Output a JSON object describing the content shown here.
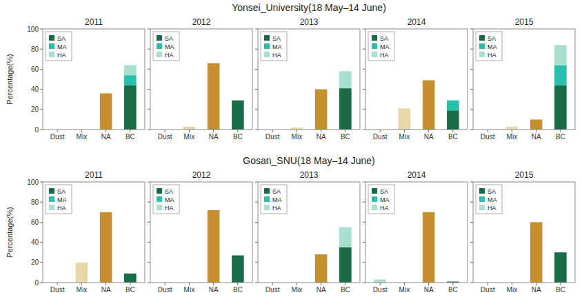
{
  "chart_data": [
    {
      "type": "bar",
      "stacked": true,
      "title": "2011",
      "subtitle": "Yonsei_University(18 May–14 June)",
      "y_label": "Percentage(%)",
      "categories": [
        "Dust",
        "Mix",
        "NA",
        "BC"
      ],
      "series": [
        {
          "name": "SA",
          "color": "#1b6b47",
          "colors": [
            "#c49030",
            "#1b6b47",
            "#c49030",
            "#1b6b47"
          ],
          "values": [
            0,
            0,
            36,
            44
          ]
        },
        {
          "name": "MA",
          "color": "#2abfaa",
          "colors": [
            "#2abfaa",
            "#2abfaa",
            "#2abfaa",
            "#2abfaa"
          ],
          "values": [
            0,
            0,
            0,
            10
          ]
        },
        {
          "name": "HA",
          "color": "#a8dfd0",
          "colors": [
            "#a8dfd0",
            "#e8d8a8",
            "#a8dfd0",
            "#a8dfd0"
          ],
          "values": [
            0,
            0,
            0,
            10
          ]
        }
      ],
      "ylim": [
        0,
        100
      ],
      "yticks": [
        0,
        20,
        40,
        60,
        80,
        100
      ],
      "legend": "upper left",
      "grid": false
    },
    {
      "type": "bar",
      "stacked": true,
      "title": "2012",
      "categories": [
        "Dust",
        "Mix",
        "NA",
        "BC"
      ],
      "series": [
        {
          "name": "SA",
          "color": "#1b6b47",
          "colors": [
            "#c49030",
            "#1b6b47",
            "#c49030",
            "#1b6b47"
          ],
          "values": [
            0,
            0,
            66,
            29
          ]
        },
        {
          "name": "MA",
          "color": "#2abfaa",
          "colors": [
            "#2abfaa",
            "#2abfaa",
            "#2abfaa",
            "#2abfaa"
          ],
          "values": [
            0,
            0,
            0,
            0
          ]
        },
        {
          "name": "HA",
          "color": "#a8dfd0",
          "colors": [
            "#a8dfd0",
            "#e8d8a8",
            "#a8dfd0",
            "#a8dfd0"
          ],
          "values": [
            0,
            3,
            0,
            0
          ]
        }
      ],
      "ylim": [
        0,
        100
      ],
      "yticks": [
        0,
        20,
        40,
        60,
        80,
        100
      ],
      "tick_labels": "x",
      "legend": "upper left",
      "grid": false
    },
    {
      "type": "bar",
      "stacked": true,
      "title": "2013",
      "categories": [
        "Dust",
        "Mix",
        "NA",
        "BC"
      ],
      "series": [
        {
          "name": "SA",
          "color": "#1b6b47",
          "colors": [
            "#c49030",
            "#1b6b47",
            "#c49030",
            "#1b6b47"
          ],
          "values": [
            0,
            0,
            40,
            41
          ]
        },
        {
          "name": "MA",
          "color": "#2abfaa",
          "colors": [
            "#2abfaa",
            "#2abfaa",
            "#2abfaa",
            "#2abfaa"
          ],
          "values": [
            0,
            0,
            0,
            0
          ]
        },
        {
          "name": "HA",
          "color": "#a8dfd0",
          "colors": [
            "#a8dfd0",
            "#e8d8a8",
            "#a8dfd0",
            "#a8dfd0"
          ],
          "values": [
            0,
            2,
            0,
            17
          ]
        }
      ],
      "ylim": [
        0,
        100
      ],
      "yticks": [
        0,
        20,
        40,
        60,
        80,
        100
      ],
      "tick_labels": "x",
      "legend": "upper left",
      "grid": false
    },
    {
      "type": "bar",
      "stacked": true,
      "title": "2014",
      "categories": [
        "Dust",
        "Mix",
        "NA",
        "BC"
      ],
      "series": [
        {
          "name": "SA",
          "color": "#1b6b47",
          "colors": [
            "#c49030",
            "#1b6b47",
            "#c49030",
            "#1b6b47"
          ],
          "values": [
            0,
            0,
            49,
            19
          ]
        },
        {
          "name": "MA",
          "color": "#2abfaa",
          "colors": [
            "#2abfaa",
            "#2abfaa",
            "#2abfaa",
            "#2abfaa"
          ],
          "values": [
            0,
            0,
            0,
            10
          ]
        },
        {
          "name": "HA",
          "color": "#a8dfd0",
          "colors": [
            "#a8dfd0",
            "#e8d8a8",
            "#a8dfd0",
            "#a8dfd0"
          ],
          "values": [
            0,
            21,
            0,
            0
          ]
        }
      ],
      "ylim": [
        0,
        100
      ],
      "yticks": [
        0,
        20,
        40,
        60,
        80,
        100
      ],
      "tick_labels": "x",
      "legend": "upper left",
      "grid": false
    },
    {
      "type": "bar",
      "stacked": true,
      "title": "2015",
      "categories": [
        "Dust",
        "Mix",
        "NA",
        "BC"
      ],
      "series": [
        {
          "name": "SA",
          "color": "#1b6b47",
          "colors": [
            "#c49030",
            "#1b6b47",
            "#c49030",
            "#1b6b47"
          ],
          "values": [
            0,
            0,
            10,
            44
          ]
        },
        {
          "name": "MA",
          "color": "#2abfaa",
          "colors": [
            "#2abfaa",
            "#2abfaa",
            "#2abfaa",
            "#2abfaa"
          ],
          "values": [
            0,
            0,
            0,
            20
          ]
        },
        {
          "name": "HA",
          "color": "#a8dfd0",
          "colors": [
            "#a8dfd0",
            "#e8d8a8",
            "#a8dfd0",
            "#a8dfd0"
          ],
          "values": [
            0,
            3,
            0,
            20
          ]
        }
      ],
      "ylim": [
        0,
        100
      ],
      "yticks": [
        0,
        20,
        40,
        60,
        80,
        100
      ],
      "tick_labels": "x",
      "legend": "upper left",
      "grid": false
    },
    {
      "type": "bar",
      "stacked": true,
      "title": "2011",
      "subtitle": "Gosan_SNU(18 May–14 June)",
      "y_label": "Percentage(%)",
      "categories": [
        "Dust",
        "Mix",
        "NA",
        "BC"
      ],
      "series": [
        {
          "name": "SA",
          "color": "#1b6b47",
          "colors": [
            "#c49030",
            "#1b6b47",
            "#c49030",
            "#1b6b47"
          ],
          "values": [
            0,
            0,
            70,
            9
          ]
        },
        {
          "name": "MA",
          "color": "#2abfaa",
          "colors": [
            "#2abfaa",
            "#2abfaa",
            "#2abfaa",
            "#2abfaa"
          ],
          "values": [
            0,
            0,
            0,
            0
          ]
        },
        {
          "name": "HA",
          "color": "#a8dfd0",
          "colors": [
            "#a8dfd0",
            "#e8d8a8",
            "#a8dfd0",
            "#a8dfd0"
          ],
          "values": [
            0,
            20,
            0,
            0
          ]
        }
      ],
      "ylim": [
        0,
        100
      ],
      "yticks": [
        0,
        20,
        40,
        60,
        80,
        100
      ],
      "legend": "upper left",
      "grid": false
    },
    {
      "type": "bar",
      "stacked": true,
      "title": "2012",
      "categories": [
        "Dust",
        "Mix",
        "NA",
        "BC"
      ],
      "series": [
        {
          "name": "SA",
          "color": "#1b6b47",
          "colors": [
            "#c49030",
            "#1b6b47",
            "#c49030",
            "#1b6b47"
          ],
          "values": [
            0,
            0,
            72,
            27
          ]
        },
        {
          "name": "MA",
          "color": "#2abfaa",
          "colors": [
            "#2abfaa",
            "#2abfaa",
            "#2abfaa",
            "#2abfaa"
          ],
          "values": [
            0,
            0,
            0,
            0
          ]
        },
        {
          "name": "HA",
          "color": "#a8dfd0",
          "colors": [
            "#a8dfd0",
            "#e8d8a8",
            "#a8dfd0",
            "#a8dfd0"
          ],
          "values": [
            0,
            0,
            0,
            0
          ]
        }
      ],
      "ylim": [
        0,
        100
      ],
      "yticks": [
        0,
        20,
        40,
        60,
        80,
        100
      ],
      "tick_labels": "x",
      "legend": "upper left",
      "grid": false
    },
    {
      "type": "bar",
      "stacked": true,
      "title": "2013",
      "categories": [
        "Dust",
        "Mix",
        "NA",
        "BC"
      ],
      "series": [
        {
          "name": "SA",
          "color": "#1b6b47",
          "colors": [
            "#c49030",
            "#1b6b47",
            "#c49030",
            "#1b6b47"
          ],
          "values": [
            0,
            0,
            28,
            35
          ]
        },
        {
          "name": "MA",
          "color": "#2abfaa",
          "colors": [
            "#2abfaa",
            "#2abfaa",
            "#2abfaa",
            "#2abfaa"
          ],
          "values": [
            0,
            0,
            0,
            0
          ]
        },
        {
          "name": "HA",
          "color": "#a8dfd0",
          "colors": [
            "#a8dfd0",
            "#e8d8a8",
            "#a8dfd0",
            "#a8dfd0"
          ],
          "values": [
            0,
            0,
            0,
            20
          ]
        }
      ],
      "ylim": [
        0,
        100
      ],
      "yticks": [
        0,
        20,
        40,
        60,
        80,
        100
      ],
      "tick_labels": "x",
      "legend": "upper left",
      "grid": false
    },
    {
      "type": "bar",
      "stacked": true,
      "title": "2014",
      "categories": [
        "Dust",
        "Mix",
        "NA",
        "BC"
      ],
      "series": [
        {
          "name": "SA",
          "color": "#1b6b47",
          "colors": [
            "#c49030",
            "#1b6b47",
            "#c49030",
            "#1b6b47"
          ],
          "values": [
            0,
            0,
            70,
            1
          ]
        },
        {
          "name": "MA",
          "color": "#2abfaa",
          "colors": [
            "#2abfaa",
            "#2abfaa",
            "#2abfaa",
            "#2abfaa"
          ],
          "values": [
            0,
            0,
            0,
            0
          ]
        },
        {
          "name": "HA",
          "color": "#a8dfd0",
          "colors": [
            "#a8dfd0",
            "#e8d8a8",
            "#a8dfd0",
            "#a8dfd0"
          ],
          "values": [
            3,
            0,
            0,
            0
          ]
        }
      ],
      "ylim": [
        0,
        100
      ],
      "yticks": [
        0,
        20,
        40,
        60,
        80,
        100
      ],
      "tick_labels": "x",
      "legend": "upper left",
      "grid": false
    },
    {
      "type": "bar",
      "stacked": true,
      "title": "2015",
      "categories": [
        "Dust",
        "Mix",
        "NA",
        "BC"
      ],
      "series": [
        {
          "name": "SA",
          "color": "#1b6b47",
          "colors": [
            "#c49030",
            "#1b6b47",
            "#c49030",
            "#1b6b47"
          ],
          "values": [
            0,
            0,
            60,
            30
          ]
        },
        {
          "name": "MA",
          "color": "#2abfaa",
          "colors": [
            "#2abfaa",
            "#2abfaa",
            "#2abfaa",
            "#2abfaa"
          ],
          "values": [
            0,
            0,
            0,
            0
          ]
        },
        {
          "name": "HA",
          "color": "#a8dfd0",
          "colors": [
            "#a8dfd0",
            "#e8d8a8",
            "#a8dfd0",
            "#a8dfd0"
          ],
          "values": [
            0,
            0,
            0,
            0
          ]
        }
      ],
      "ylim": [
        0,
        100
      ],
      "yticks": [
        0,
        20,
        40,
        60,
        80,
        100
      ],
      "tick_labels": "x",
      "legend": "upper left",
      "grid": false
    }
  ]
}
